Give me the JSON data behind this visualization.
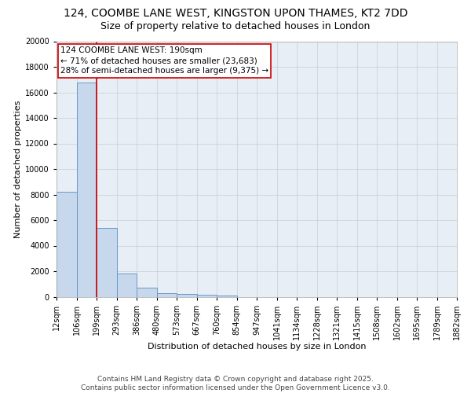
{
  "title_line1": "124, COOMBE LANE WEST, KINGSTON UPON THAMES, KT2 7DD",
  "title_line2": "Size of property relative to detached houses in London",
  "xlabel": "Distribution of detached houses by size in London",
  "ylabel": "Number of detached properties",
  "bar_edges": [
    12,
    106,
    199,
    293,
    386,
    480,
    573,
    667,
    760,
    854,
    947,
    1041,
    1134,
    1228,
    1321,
    1415,
    1508,
    1602,
    1695,
    1789,
    1882
  ],
  "bar_heights": [
    8200,
    16800,
    5400,
    1800,
    700,
    300,
    200,
    150,
    100,
    0,
    0,
    0,
    0,
    0,
    0,
    0,
    0,
    0,
    0,
    0
  ],
  "bar_facecolor": "#c8d8ec",
  "bar_edgecolor": "#6699cc",
  "property_line_x": 199,
  "property_line_color": "#cc0000",
  "annotation_text": "124 COOMBE LANE WEST: 190sqm\n← 71% of detached houses are smaller (23,683)\n28% of semi-detached houses are larger (9,375) →",
  "annotation_box_color": "#cc0000",
  "ylim": [
    0,
    20000
  ],
  "yticks": [
    0,
    2000,
    4000,
    6000,
    8000,
    10000,
    12000,
    14000,
    16000,
    18000,
    20000
  ],
  "grid_color": "#cccccc",
  "background_color": "#e8eef5",
  "footer_line1": "Contains HM Land Registry data © Crown copyright and database right 2025.",
  "footer_line2": "Contains public sector information licensed under the Open Government Licence v3.0.",
  "title_fontsize": 10,
  "subtitle_fontsize": 9,
  "axis_label_fontsize": 8,
  "tick_fontsize": 7,
  "annotation_fontsize": 7.5,
  "footer_fontsize": 6.5
}
